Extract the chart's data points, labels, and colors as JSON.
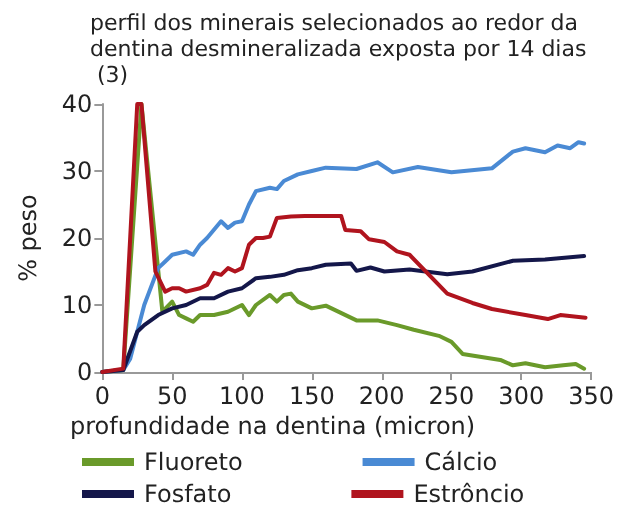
{
  "chart_data": {
    "type": "line",
    "title": "perfil dos minerais selecionados ao redor da dentina desmineralizada exposta por 14 dias (3)",
    "xlabel": "profundidade na dentina (micron)",
    "ylabel": "% peso",
    "xlim": [
      0,
      350
    ],
    "xticks": [
      0,
      50,
      100,
      150,
      200,
      250,
      300,
      350
    ],
    "ylim": [
      0,
      40
    ],
    "yticks": [
      0,
      10,
      20,
      30,
      40
    ],
    "grid": false,
    "legend": "bottom",
    "marker": "none",
    "line_style": "solid",
    "series": [
      {
        "name": "Fluoreto",
        "color": "#6a9a2a",
        "x": [
          0,
          15,
          28,
          43,
          50,
          55,
          60,
          65,
          70,
          80,
          90,
          100,
          105,
          110,
          120,
          125,
          130,
          135,
          140,
          150,
          160,
          182,
          197,
          211,
          223,
          241,
          250,
          258,
          285,
          294,
          303,
          317,
          330,
          339,
          345
        ],
        "values": [
          0,
          0.3,
          40,
          9,
          10.5,
          8.5,
          8,
          7.5,
          8.5,
          8.5,
          9,
          10,
          8.5,
          10,
          11.5,
          10.5,
          11.5,
          11.7,
          10.5,
          9.5,
          9.9,
          7.7,
          7.7,
          7,
          6.3,
          5.4,
          4.5,
          2.7,
          1.8,
          1,
          1.3,
          0.7,
          1,
          1.2,
          0.5
        ]
      },
      {
        "name": "Cálcio",
        "color": "#4a8ad4",
        "x": [
          0,
          15,
          20,
          25,
          30,
          40,
          45,
          50,
          60,
          65,
          70,
          75,
          85,
          90,
          95,
          100,
          105,
          110,
          120,
          125,
          130,
          140,
          150,
          160,
          182,
          197,
          208,
          226,
          250,
          279,
          294,
          303,
          317,
          326,
          335,
          341,
          345
        ],
        "values": [
          0,
          0.3,
          2,
          6,
          10,
          15.5,
          16.5,
          17.5,
          18,
          17.5,
          19,
          20,
          22.5,
          21.5,
          22.3,
          22.5,
          25,
          27,
          27.5,
          27.3,
          28.5,
          29.5,
          30,
          30.5,
          30.3,
          31.3,
          29.8,
          30.6,
          29.8,
          30.4,
          32.9,
          33.4,
          32.8,
          33.8,
          33.4,
          34.3,
          34.1
        ]
      },
      {
        "name": "Fosfato",
        "color": "#14174a",
        "x": [
          0,
          15,
          25,
          30,
          40,
          50,
          60,
          70,
          80,
          90,
          100,
          110,
          120,
          130,
          140,
          150,
          160,
          178,
          182,
          192,
          202,
          220,
          247,
          265,
          294,
          317,
          345
        ],
        "values": [
          0,
          0.3,
          6,
          7,
          8.5,
          9.5,
          10,
          11,
          11,
          12,
          12.5,
          14,
          14.2,
          14.5,
          15.2,
          15.5,
          16,
          16.2,
          15.1,
          15.6,
          15,
          15.3,
          14.6,
          15,
          16.6,
          16.8,
          17.3
        ]
      },
      {
        "name": "Estrôncio",
        "color": "#b0141e",
        "x": [
          0,
          15,
          25,
          28,
          38,
          45,
          50,
          55,
          60,
          70,
          75,
          80,
          85,
          90,
          95,
          100,
          105,
          110,
          115,
          120,
          125,
          135,
          145,
          160,
          171,
          174,
          185,
          191,
          202,
          211,
          220,
          247,
          265,
          279,
          303,
          319,
          328,
          346
        ],
        "values": [
          0,
          0.5,
          40,
          40,
          15,
          12,
          12.5,
          12.5,
          12,
          12.5,
          13,
          14.8,
          14.5,
          15.5,
          15,
          15.5,
          19,
          20,
          20,
          20.2,
          23,
          23.2,
          23.3,
          23.3,
          23.3,
          21.2,
          21,
          19.8,
          19.4,
          18,
          17.5,
          11.7,
          10.3,
          9.4,
          8.5,
          7.9,
          8.5,
          8.1
        ]
      }
    ]
  }
}
